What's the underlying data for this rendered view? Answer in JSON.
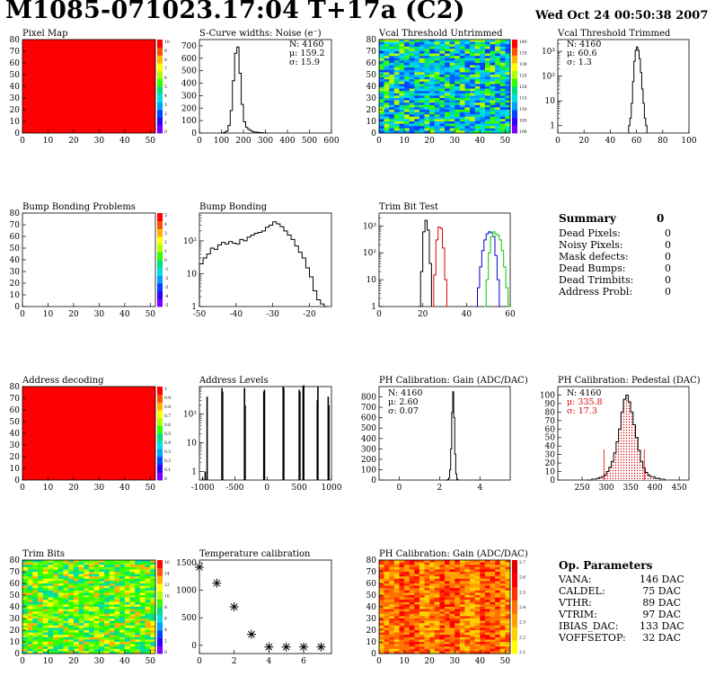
{
  "header": {
    "title": "M1085-071023.17:04 T+17a (C2)",
    "date": "Wed Oct 24 00:50:38 2007"
  },
  "panels": {
    "pixel_map": {
      "title": "Pixel Map"
    },
    "scurve": {
      "title": "S-Curve widths: Noise (e⁻)",
      "stats": [
        "N: 4160",
        "μ: 159.2",
        "σ: 15.9"
      ]
    },
    "vcal_untrimmed": {
      "title": "Vcal Threshold Untrimmed"
    },
    "vcal_trimmed": {
      "title": "Vcal Threshold Trimmed",
      "stats": [
        "N: 4160",
        "μ: 60.6",
        "σ:  1.3"
      ]
    },
    "bump_problems": {
      "title": "Bump Bonding Problems"
    },
    "bump_bonding": {
      "title": "Bump Bonding"
    },
    "trim_bit_test": {
      "title": "Trim Bit Test"
    },
    "address_decoding": {
      "title": "Address decoding"
    },
    "address_levels": {
      "title": "Address Levels"
    },
    "ph_gain": {
      "title": "PH Calibration: Gain (ADC/DAC)",
      "stats": [
        "N: 4160",
        "μ: 2.60",
        "σ: 0.07"
      ]
    },
    "ph_pedestal": {
      "title": "PH Calibration: Pedestal (DAC)",
      "stats": [
        "N: 4160",
        "μ: 335.8",
        "σ: 17.3"
      ]
    },
    "trim_bits": {
      "title": "Trim Bits"
    },
    "temperature": {
      "title": "Temperature calibration"
    },
    "ph_gain_map": {
      "title": "PH Calibration: Gain (ADC/DAC)"
    }
  },
  "summary": {
    "title": "Summary",
    "total": "0",
    "rows": [
      {
        "label": "Dead Pixels:",
        "value": "0"
      },
      {
        "label": "Noisy Pixels:",
        "value": "0"
      },
      {
        "label": "Mask defects:",
        "value": "0"
      },
      {
        "label": "Dead Bumps:",
        "value": "0"
      },
      {
        "label": "Dead Trimbits:",
        "value": "0"
      },
      {
        "label": "Address Probl:",
        "value": "0"
      }
    ]
  },
  "op_params": {
    "title": "Op. Parameters",
    "rows": [
      {
        "label": "VANA:",
        "value": "146 DAC"
      },
      {
        "label": "CALDEL:",
        "value": "75 DAC"
      },
      {
        "label": "VTHR:",
        "value": "89 DAC"
      },
      {
        "label": "VTRIM:",
        "value": "97 DAC"
      },
      {
        "label": "IBIAS_DAC:",
        "value": "133 DAC"
      },
      {
        "label": "VOFFSETOP:",
        "value": "32 DAC"
      }
    ]
  },
  "colors": {
    "stat_red": "#dd0000",
    "hist_red": "#dd0000",
    "hist_blue": "#0000cc",
    "hist_green": "#00cc00"
  },
  "chart_data": [
    {
      "id": "pixel_map",
      "type": "heatmap",
      "title": "Pixel Map",
      "xlim": [
        0,
        52
      ],
      "ylim": [
        0,
        80
      ],
      "xticks": [
        0,
        10,
        20,
        30,
        40,
        50
      ],
      "yticks": [
        0,
        10,
        20,
        30,
        40,
        50,
        60,
        70,
        80
      ],
      "fill": "uniform-red",
      "palette_ticks": [
        "10",
        "9",
        "8",
        "7",
        "6",
        "5",
        "4",
        "3",
        "2",
        "1",
        "0"
      ]
    },
    {
      "id": "scurve",
      "type": "bar",
      "title": "S-Curve widths: Noise (e⁻)",
      "xlim": [
        0,
        600
      ],
      "ylim": [
        0,
        750
      ],
      "xticks": [
        0,
        100,
        200,
        300,
        400,
        500,
        600
      ],
      "yticks": [
        0,
        100,
        200,
        300,
        400,
        500,
        600,
        700
      ],
      "x": [
        100,
        110,
        120,
        130,
        140,
        150,
        160,
        170,
        180,
        190,
        200,
        210,
        220,
        230,
        240,
        250,
        260,
        270,
        280,
        290,
        300
      ],
      "values": [
        0,
        5,
        15,
        60,
        180,
        420,
        640,
        690,
        480,
        230,
        90,
        45,
        30,
        20,
        10,
        8,
        6,
        4,
        3,
        1,
        0
      ]
    },
    {
      "id": "vcal_untrimmed",
      "type": "heatmap",
      "title": "Vcal Threshold Untrimmed",
      "xlim": [
        0,
        52
      ],
      "ylim": [
        0,
        80
      ],
      "xticks": [
        0,
        10,
        20,
        30,
        40,
        50
      ],
      "yticks": [
        0,
        10,
        20,
        30,
        40,
        50,
        60,
        70,
        80
      ],
      "fill": "noise-blue-green",
      "palette_ticks": [
        "140",
        "135",
        "130",
        "125",
        "120",
        "115",
        "110",
        "105",
        "100"
      ]
    },
    {
      "id": "vcal_trimmed",
      "type": "bar",
      "title": "Vcal Threshold Trimmed",
      "log_y": true,
      "xlim": [
        0,
        100
      ],
      "ylim": [
        0.5,
        3000
      ],
      "xticks": [
        0,
        20,
        40,
        60,
        80,
        100
      ],
      "ytick_labels": [
        "1",
        "10",
        "10²",
        "10³"
      ],
      "x": [
        54,
        55,
        56,
        57,
        58,
        59,
        60,
        61,
        62,
        63,
        64,
        65,
        66,
        67
      ],
      "values": [
        1,
        2,
        8,
        60,
        400,
        1100,
        1500,
        1100,
        500,
        140,
        30,
        8,
        2,
        1
      ]
    },
    {
      "id": "bump_problems",
      "type": "heatmap",
      "title": "Bump Bonding Problems",
      "xlim": [
        0,
        52
      ],
      "ylim": [
        0,
        80
      ],
      "xticks": [
        0,
        10,
        20,
        30,
        40,
        50
      ],
      "yticks": [
        0,
        10,
        20,
        30,
        40,
        50,
        60,
        70,
        80
      ],
      "fill": "empty",
      "palette_ticks": [
        "5",
        "4",
        "3",
        "2",
        "1",
        "0",
        "-1",
        "-2",
        "-3",
        "-4",
        "-5"
      ]
    },
    {
      "id": "bump_bonding",
      "type": "bar",
      "title": "Bump Bonding",
      "log_y": true,
      "xlim": [
        -50,
        -14
      ],
      "ylim": [
        1,
        700
      ],
      "xticks": [
        -50,
        -40,
        -30,
        -20
      ],
      "ytick_labels": [
        "1",
        "10",
        "10²"
      ],
      "x": [
        -50,
        -49,
        -48,
        -47,
        -46,
        -45,
        -44,
        -43,
        -42,
        -41,
        -40,
        -39,
        -38,
        -37,
        -36,
        -35,
        -34,
        -33,
        -32,
        -31,
        -30,
        -29,
        -28,
        -27,
        -26,
        -25,
        -24,
        -23,
        -22,
        -21,
        -20,
        -19,
        -18,
        -17,
        -16
      ],
      "values": [
        20,
        30,
        40,
        60,
        55,
        75,
        90,
        80,
        95,
        85,
        80,
        110,
        100,
        130,
        150,
        170,
        180,
        200,
        260,
        300,
        380,
        330,
        270,
        200,
        150,
        110,
        70,
        45,
        30,
        15,
        8,
        3,
        1.6,
        1.2,
        1
      ]
    },
    {
      "id": "trim_bit_test",
      "type": "line",
      "title": "Trim Bit Test",
      "log_y": true,
      "xlim": [
        0,
        60
      ],
      "ylim": [
        1,
        3000
      ],
      "xticks": [
        0,
        20,
        40,
        60
      ],
      "ytick_labels": [
        "1",
        "10",
        "10²",
        "10³"
      ],
      "series": [
        {
          "color": "#000000",
          "x": [
            18,
            19,
            20,
            21,
            22,
            23,
            24
          ],
          "values": [
            1,
            20,
            600,
            1600,
            700,
            40,
            1
          ]
        },
        {
          "color": "#dd0000",
          "x": [
            24,
            25,
            26,
            27,
            28,
            29,
            30,
            31
          ],
          "values": [
            1,
            15,
            300,
            900,
            800,
            150,
            10,
            1
          ]
        },
        {
          "color": "#0000cc",
          "x": [
            44,
            45,
            46,
            47,
            48,
            49,
            50,
            51,
            52,
            53,
            54,
            55
          ],
          "values": [
            1,
            5,
            30,
            120,
            300,
            500,
            600,
            550,
            400,
            80,
            10,
            1
          ]
        },
        {
          "color": "#00cc00",
          "x": [
            48,
            49,
            50,
            51,
            52,
            53,
            54,
            55,
            56,
            57,
            58,
            59
          ],
          "values": [
            1,
            10,
            100,
            400,
            600,
            500,
            450,
            300,
            120,
            30,
            5,
            1
          ]
        }
      ]
    },
    {
      "id": "address_decoding",
      "type": "heatmap",
      "title": "Address decoding",
      "xlim": [
        0,
        52
      ],
      "ylim": [
        0,
        80
      ],
      "xticks": [
        0,
        10,
        20,
        30,
        40,
        50
      ],
      "yticks": [
        0,
        10,
        20,
        30,
        40,
        50,
        60,
        70,
        80
      ],
      "fill": "uniform-red",
      "palette_ticks": [
        "1",
        "0.9",
        "0.8",
        "0.7",
        "0.6",
        "0.5",
        "0.4",
        "0.3",
        "0.2",
        "0.1",
        "0"
      ]
    },
    {
      "id": "address_levels",
      "type": "bar",
      "title": "Address Levels",
      "log_y": true,
      "xlim": [
        -1050,
        1000
      ],
      "ylim": [
        0.5,
        900
      ],
      "xticks": [
        -1000,
        -500,
        0,
        500,
        1000
      ],
      "ytick_labels": [
        "1",
        "10",
        "10²"
      ],
      "x": [
        -1000,
        -960,
        -930,
        -700,
        -690,
        -350,
        -340,
        -50,
        -40,
        250,
        260,
        500,
        510,
        560,
        570,
        780,
        790,
        950,
        960
      ],
      "values": [
        0.6,
        1,
        400,
        800,
        600,
        800,
        200,
        600,
        700,
        900,
        800,
        700,
        600,
        900,
        1000,
        300,
        900,
        400,
        200
      ]
    },
    {
      "id": "ph_gain",
      "type": "bar",
      "title": "PH Calibration: Gain (ADC/DAC)",
      "xlim": [
        -1,
        5.5
      ],
      "ylim": [
        0,
        900
      ],
      "xticks": [
        0,
        2,
        4
      ],
      "yticks": [
        0,
        100,
        200,
        300,
        400,
        500,
        600,
        700,
        800
      ],
      "x": [
        2.3,
        2.4,
        2.45,
        2.5,
        2.55,
        2.6,
        2.65,
        2.7,
        2.75,
        2.8,
        2.85,
        2.9
      ],
      "values": [
        0,
        5,
        20,
        100,
        300,
        650,
        850,
        600,
        250,
        60,
        10,
        0
      ]
    },
    {
      "id": "ph_pedestal",
      "type": "bar",
      "title": "PH Calibration: Pedestal (DAC)",
      "xlim": [
        200,
        470
      ],
      "ylim": [
        0,
        110
      ],
      "xticks": [
        250,
        300,
        350,
        400,
        450
      ],
      "yticks": [
        0,
        10,
        20,
        30,
        40,
        50,
        60,
        70,
        80,
        90,
        100
      ],
      "x": [
        260,
        270,
        280,
        285,
        290,
        295,
        300,
        305,
        310,
        315,
        320,
        325,
        330,
        335,
        340,
        345,
        350,
        355,
        360,
        365,
        370,
        375,
        380,
        385,
        390,
        400,
        410
      ],
      "values": [
        0,
        1,
        2,
        3,
        4,
        6,
        10,
        15,
        22,
        32,
        45,
        60,
        80,
        95,
        100,
        92,
        80,
        65,
        50,
        35,
        22,
        14,
        9,
        6,
        4,
        2,
        1
      ]
    },
    {
      "id": "trim_bits",
      "type": "heatmap",
      "title": "Trim Bits",
      "xlim": [
        0,
        52
      ],
      "ylim": [
        0,
        80
      ],
      "xticks": [
        0,
        10,
        20,
        30,
        40,
        50
      ],
      "yticks": [
        0,
        10,
        20,
        30,
        40,
        50,
        60,
        70,
        80
      ],
      "fill": "noise-green-yellow",
      "palette_ticks": [
        "16",
        "14",
        "12",
        "10",
        "8",
        "6",
        "4",
        "2",
        "0"
      ]
    },
    {
      "id": "temperature",
      "type": "scatter",
      "title": "Temperature calibration",
      "xlim": [
        0,
        7.6
      ],
      "ylim": [
        -150,
        1550
      ],
      "xticks": [
        0,
        2,
        4,
        6
      ],
      "yticks": [
        0,
        500,
        1000,
        1500
      ],
      "x": [
        0,
        1,
        2,
        3,
        4,
        5,
        6,
        7
      ],
      "values": [
        1420,
        1130,
        700,
        200,
        -30,
        -30,
        -30,
        -30
      ]
    },
    {
      "id": "ph_gain_map",
      "type": "heatmap",
      "title": "PH Calibration: Gain (ADC/DAC)",
      "xlim": [
        0,
        52
      ],
      "ylim": [
        0,
        80
      ],
      "xticks": [
        0,
        10,
        20,
        30,
        40,
        50
      ],
      "yticks": [
        0,
        10,
        20,
        30,
        40,
        50,
        60,
        70,
        80
      ],
      "fill": "noise-red-yellow",
      "palette_ticks": [
        "2.7",
        "2.6",
        "2.5",
        "2.4",
        "2.3",
        "2.2",
        "2.1"
      ]
    }
  ]
}
